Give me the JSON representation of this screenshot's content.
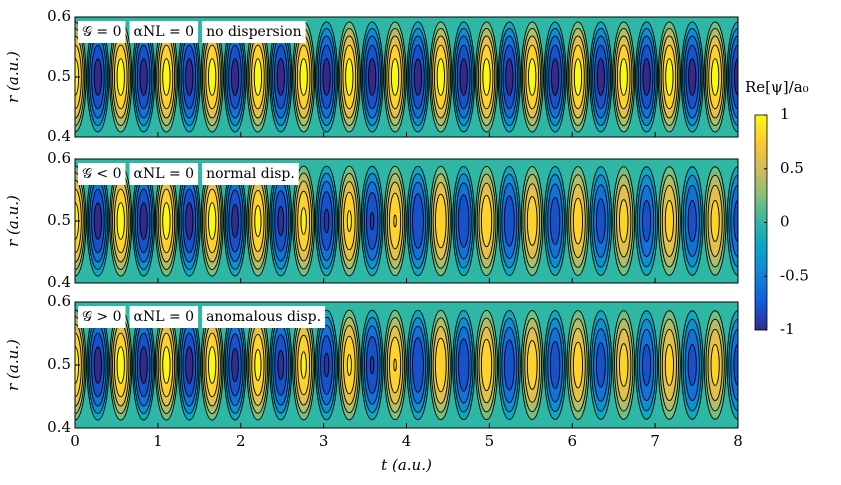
{
  "chart_data": [
    {
      "type": "contour",
      "annotations": [
        "𝒢 = 0",
        "αNL = 0",
        "no dispersion"
      ],
      "ylabel": "r (a.u.)",
      "xlim": [
        0,
        8
      ],
      "ylim": [
        0.4,
        0.6
      ],
      "yticks": [
        0.4,
        0.5,
        0.6
      ],
      "center": 0.5,
      "x": [
        0,
        0.276,
        0.552,
        0.828,
        1.103,
        1.379,
        1.655,
        1.931,
        2.207,
        2.483,
        2.759,
        3.035,
        3.31,
        3.586,
        3.862,
        4.138,
        4.414,
        4.69,
        4.966,
        5.241,
        5.517,
        5.793,
        6.069,
        6.345,
        6.621,
        6.897,
        7.172,
        7.448,
        7.724,
        8
      ],
      "values": [
        1,
        -1,
        1,
        -1,
        1,
        -1,
        1,
        -1,
        1,
        -1,
        1,
        -1,
        1,
        -1,
        1,
        -1,
        1,
        -1,
        1,
        -1,
        1,
        -1,
        1,
        -1,
        1,
        -1,
        1,
        -1,
        1,
        -1
      ],
      "colorbar": {
        "label": "Re[ψ]/a₀",
        "lim": [
          -1,
          1
        ],
        "ticks": [
          -1,
          -0.5,
          0,
          0.5,
          1
        ]
      }
    },
    {
      "type": "contour",
      "annotations": [
        "𝒢 < 0",
        "αNL = 0",
        "normal disp."
      ],
      "ylabel": "r (a.u.)",
      "xlim": [
        0,
        8
      ],
      "ylim": [
        0.4,
        0.6
      ],
      "yticks": [
        0.4,
        0.5,
        0.6
      ],
      "center": 0.5,
      "x": [
        0,
        0.276,
        0.552,
        0.828,
        1.103,
        1.379,
        1.655,
        1.931,
        2.207,
        2.483,
        2.759,
        3.035,
        3.31,
        3.586,
        3.862,
        4.138,
        4.414,
        4.69,
        4.966,
        5.241,
        5.517,
        5.793,
        6.069,
        6.345,
        6.621,
        6.897,
        7.172,
        7.448,
        7.724,
        8
      ],
      "values": [
        1,
        -1,
        1,
        -1,
        1,
        -1,
        1,
        -0.98,
        0.97,
        -0.96,
        0.95,
        -0.94,
        0.93,
        -0.92,
        0.91,
        -0.9,
        0.89,
        -0.88,
        0.87,
        -0.86,
        0.85,
        -0.84,
        0.83,
        -0.82,
        0.81,
        -0.8,
        0.8,
        -0.8,
        0.8,
        -0.8
      ]
    },
    {
      "type": "contour",
      "annotations": [
        "𝒢 > 0",
        "αNL = 0",
        "anomalous disp."
      ],
      "ylabel": "r (a.u.)",
      "xlabel": "t (a.u.)",
      "xticks": [
        0,
        1,
        2,
        3,
        4,
        5,
        6,
        7,
        8
      ],
      "xlim": [
        0,
        8
      ],
      "ylim": [
        0.4,
        0.6
      ],
      "yticks": [
        0.4,
        0.5,
        0.6
      ],
      "center": 0.5,
      "x": [
        0,
        0.276,
        0.552,
        0.828,
        1.103,
        1.379,
        1.655,
        1.931,
        2.207,
        2.483,
        2.759,
        3.035,
        3.31,
        3.586,
        3.862,
        4.138,
        4.414,
        4.69,
        4.966,
        5.241,
        5.517,
        5.793,
        6.069,
        6.345,
        6.621,
        6.897,
        7.172,
        7.448,
        7.724,
        8
      ],
      "values": [
        1,
        -1,
        1,
        -1,
        1,
        -1,
        1,
        -0.98,
        0.97,
        -0.96,
        0.95,
        -0.94,
        0.93,
        -0.92,
        0.91,
        -0.9,
        0.89,
        -0.88,
        0.87,
        -0.86,
        0.85,
        -0.84,
        0.83,
        -0.82,
        0.81,
        -0.8,
        0.8,
        -0.8,
        0.8,
        -0.8
      ]
    }
  ]
}
